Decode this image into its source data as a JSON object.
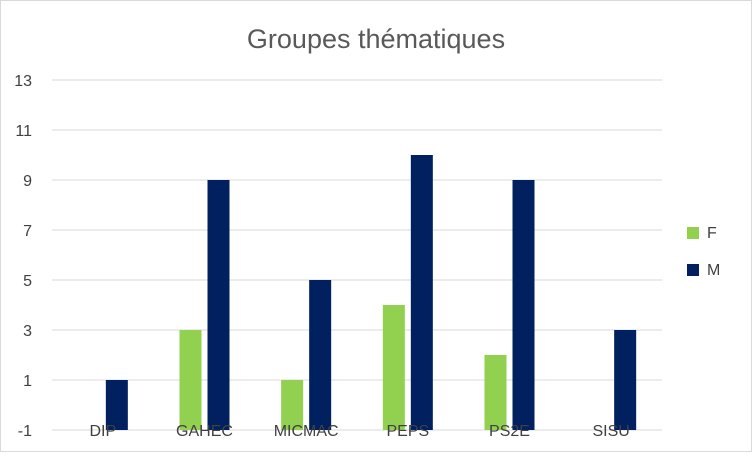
{
  "chart_data": {
    "type": "bar",
    "title": "Groupes thématiques",
    "categories": [
      "DIP",
      "GAHEC",
      "MICMAC",
      "PEPS",
      "PS2E",
      "SISU"
    ],
    "series": [
      {
        "name": "F",
        "values": [
          -1,
          3,
          1,
          4,
          2,
          -1
        ],
        "color": "#92d050"
      },
      {
        "name": "M",
        "values": [
          1,
          9,
          5,
          10,
          9,
          3
        ],
        "color": "#002060"
      }
    ],
    "ylim": [
      -1,
      13
    ],
    "yticks": [
      "-1",
      "1",
      "3",
      "5",
      "7",
      "9",
      "11",
      "13"
    ],
    "grid": true,
    "legend": "right"
  }
}
